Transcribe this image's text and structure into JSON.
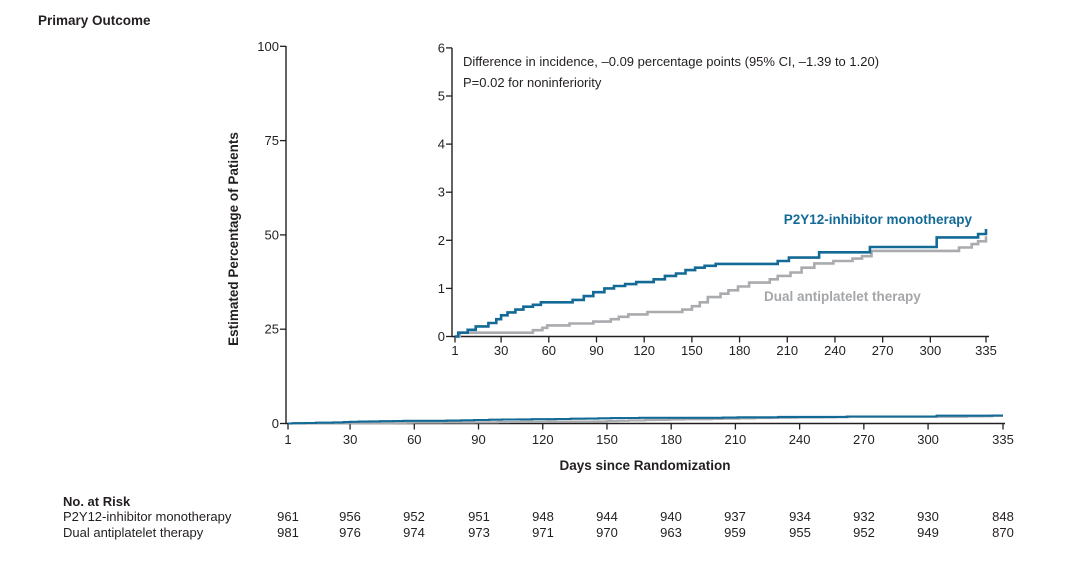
{
  "title": "Primary Outcome",
  "chart_data": {
    "type": "line",
    "subtype": "step-cumulative-incidence-with-inset",
    "xlabel": "Days since Randomization",
    "ylabel": "Estimated Percentage of Patients",
    "x_range": [
      1,
      335
    ],
    "x_ticks": [
      1,
      30,
      60,
      90,
      120,
      150,
      180,
      210,
      240,
      270,
      300,
      335
    ],
    "main_axis": {
      "ylim": [
        0,
        100
      ],
      "yticks": [
        0,
        25,
        50,
        75,
        100
      ]
    },
    "inset_axis": {
      "ylim": [
        0,
        6
      ],
      "yticks": [
        0,
        1,
        2,
        3,
        4,
        5,
        6
      ]
    },
    "annotation": [
      "Difference in incidence, –0.09 percentage points (95% CI, –1.39 to 1.20)",
      "P=0.02 for noninferiority"
    ],
    "grid": "off",
    "legend_position": "labels-on-curves",
    "axis_color": "#231f20",
    "series": [
      {
        "name": "P2Y12-inhibitor monotherapy",
        "color": "#136a96",
        "steps": [
          [
            1,
            0
          ],
          [
            3,
            0.08
          ],
          [
            9,
            0.14
          ],
          [
            14,
            0.21
          ],
          [
            22,
            0.28
          ],
          [
            27,
            0.36
          ],
          [
            30,
            0.44
          ],
          [
            34,
            0.5
          ],
          [
            39,
            0.56
          ],
          [
            44,
            0.62
          ],
          [
            50,
            0.66
          ],
          [
            55,
            0.71
          ],
          [
            75,
            0.76
          ],
          [
            82,
            0.84
          ],
          [
            88,
            0.92
          ],
          [
            95,
            1.0
          ],
          [
            101,
            1.05
          ],
          [
            108,
            1.09
          ],
          [
            115,
            1.13
          ],
          [
            126,
            1.19
          ],
          [
            133,
            1.26
          ],
          [
            140,
            1.31
          ],
          [
            146,
            1.38
          ],
          [
            152,
            1.43
          ],
          [
            158,
            1.47
          ],
          [
            165,
            1.51
          ],
          [
            204,
            1.57
          ],
          [
            211,
            1.64
          ],
          [
            230,
            1.75
          ],
          [
            262,
            1.86
          ],
          [
            304,
            2.06
          ],
          [
            330,
            2.13
          ]
        ],
        "end_value_pct": 2.1
      },
      {
        "name": "Dual antiplatelet therapy",
        "color": "#a9abae",
        "steps": [
          [
            1,
            0
          ],
          [
            4,
            0.08
          ],
          [
            50,
            0.13
          ],
          [
            56,
            0.18
          ],
          [
            59,
            0.23
          ],
          [
            73,
            0.27
          ],
          [
            88,
            0.31
          ],
          [
            99,
            0.36
          ],
          [
            104,
            0.41
          ],
          [
            110,
            0.46
          ],
          [
            122,
            0.51
          ],
          [
            144,
            0.56
          ],
          [
            150,
            0.63
          ],
          [
            155,
            0.71
          ],
          [
            160,
            0.82
          ],
          [
            168,
            0.89
          ],
          [
            173,
            0.96
          ],
          [
            179,
            1.04
          ],
          [
            186,
            1.12
          ],
          [
            199,
            1.19
          ],
          [
            204,
            1.26
          ],
          [
            212,
            1.33
          ],
          [
            219,
            1.43
          ],
          [
            227,
            1.52
          ],
          [
            239,
            1.57
          ],
          [
            251,
            1.62
          ],
          [
            257,
            1.67
          ],
          [
            263,
            1.78
          ],
          [
            318,
            1.85
          ],
          [
            326,
            1.92
          ],
          [
            330,
            1.98
          ]
        ],
        "end_value_pct": 2.0
      }
    ]
  },
  "risk_table": {
    "title": "No. at Risk",
    "columns_days": [
      1,
      30,
      60,
      90,
      120,
      150,
      180,
      210,
      240,
      270,
      300,
      335
    ],
    "rows": [
      {
        "label": "P2Y12-inhibitor monotherapy",
        "values": [
          961,
          956,
          952,
          951,
          948,
          944,
          940,
          937,
          934,
          932,
          930,
          848
        ]
      },
      {
        "label": "Dual antiplatelet therapy",
        "values": [
          981,
          976,
          974,
          973,
          971,
          970,
          963,
          959,
          955,
          952,
          949,
          870
        ]
      }
    ]
  }
}
